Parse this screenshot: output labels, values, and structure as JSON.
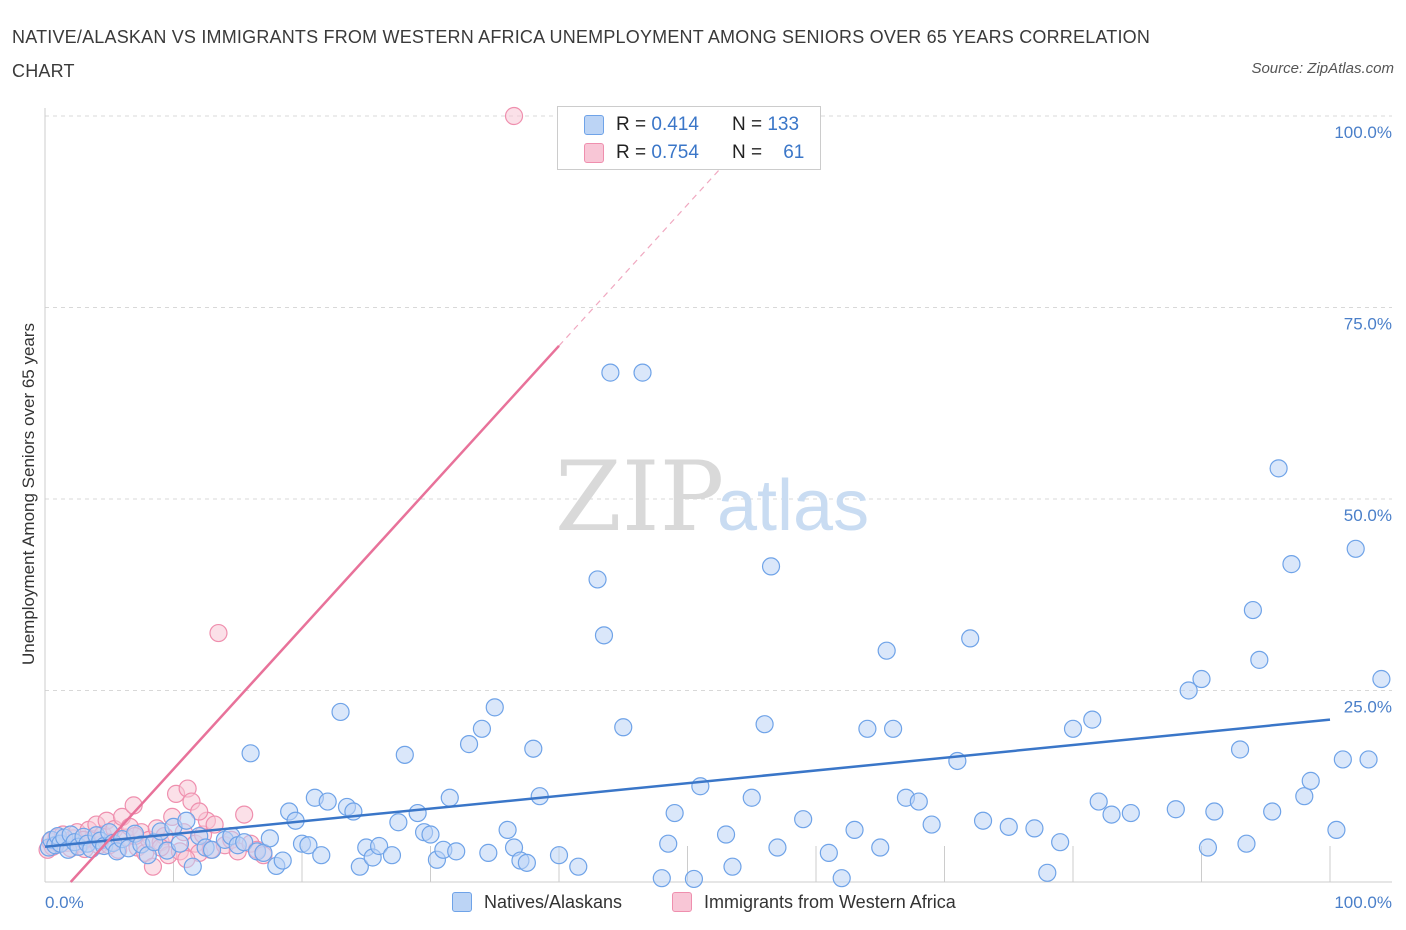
{
  "title": "NATIVE/ALASKAN VS IMMIGRANTS FROM WESTERN AFRICA UNEMPLOYMENT AMONG SENIORS OVER 65 YEARS CORRELATION CHART",
  "source": "Source: ZipAtlas.com",
  "watermark": {
    "zip": "ZIP",
    "atlas": "atlas"
  },
  "legend_stats": [
    {
      "r_label": "R =",
      "r_value": "0.414",
      "n_label": "N =",
      "n_value": "133",
      "color": "#6fa3e8"
    },
    {
      "r_label": "R =",
      "r_value": "0.754",
      "n_label": "N =",
      "n_value": "61",
      "color": "#ef8fae"
    }
  ],
  "chart_data": {
    "type": "scatter",
    "ylabel": "Unemployment Among Seniors over 65 years",
    "xlim": [
      0,
      100
    ],
    "ylim": [
      0,
      100
    ],
    "x_tick_labels": [
      "0.0%",
      "100.0%"
    ],
    "y_ticks": [
      25,
      50,
      75,
      100
    ],
    "y_tick_labels": [
      "25.0%",
      "50.0%",
      "75.0%",
      "100.0%"
    ],
    "grid": true,
    "legend": "bottom",
    "series": [
      {
        "name": "Natives/Alaskans",
        "color": "#6fa3e8",
        "fill": "#bcd4f5",
        "points": [
          [
            0.3,
            4.5
          ],
          [
            0.5,
            5.5
          ],
          [
            0.8,
            4.8
          ],
          [
            1.0,
            6.0
          ],
          [
            1.2,
            5.0
          ],
          [
            1.5,
            5.8
          ],
          [
            1.8,
            4.2
          ],
          [
            2.0,
            6.2
          ],
          [
            2.3,
            5.2
          ],
          [
            2.6,
            4.6
          ],
          [
            3.0,
            5.9
          ],
          [
            3.3,
            5.0
          ],
          [
            3.6,
            4.3
          ],
          [
            4.0,
            6.1
          ],
          [
            4.3,
            5.4
          ],
          [
            4.6,
            4.7
          ],
          [
            5.0,
            6.5
          ],
          [
            5.3,
            5.1
          ],
          [
            5.6,
            4.0
          ],
          [
            6.0,
            5.6
          ],
          [
            6.5,
            4.4
          ],
          [
            7.0,
            6.3
          ],
          [
            7.5,
            4.9
          ],
          [
            8.0,
            3.5
          ],
          [
            8.5,
            5.2
          ],
          [
            9.0,
            6.6
          ],
          [
            9.5,
            4.1
          ],
          [
            10.0,
            7.2
          ],
          [
            10.5,
            5.0
          ],
          [
            11.0,
            8.0
          ],
          [
            11.5,
            2.0
          ],
          [
            12.0,
            6.0
          ],
          [
            12.5,
            4.5
          ],
          [
            13.0,
            4.2
          ],
          [
            14.0,
            5.5
          ],
          [
            14.5,
            6.0
          ],
          [
            15.0,
            4.8
          ],
          [
            15.5,
            5.2
          ],
          [
            16.0,
            16.8
          ],
          [
            16.5,
            4.0
          ],
          [
            17.0,
            3.8
          ],
          [
            17.5,
            5.7
          ],
          [
            18.0,
            2.1
          ],
          [
            18.5,
            2.8
          ],
          [
            19.0,
            9.2
          ],
          [
            19.5,
            8.0
          ],
          [
            20.0,
            5.0
          ],
          [
            20.5,
            4.8
          ],
          [
            21.0,
            11.0
          ],
          [
            21.5,
            3.5
          ],
          [
            22.0,
            10.5
          ],
          [
            23.0,
            22.2
          ],
          [
            23.5,
            9.8
          ],
          [
            24.0,
            9.2
          ],
          [
            24.5,
            2.0
          ],
          [
            25.0,
            4.5
          ],
          [
            25.5,
            3.2
          ],
          [
            26.0,
            4.7
          ],
          [
            27.0,
            3.5
          ],
          [
            27.5,
            7.8
          ],
          [
            28.0,
            16.6
          ],
          [
            29.0,
            9.0
          ],
          [
            29.5,
            6.5
          ],
          [
            30.0,
            6.2
          ],
          [
            30.5,
            2.9
          ],
          [
            31.0,
            4.2
          ],
          [
            31.5,
            11.0
          ],
          [
            32.0,
            4.0
          ],
          [
            33.0,
            18.0
          ],
          [
            34.0,
            20.0
          ],
          [
            34.5,
            3.8
          ],
          [
            35.0,
            22.8
          ],
          [
            36.0,
            6.8
          ],
          [
            36.5,
            4.5
          ],
          [
            37.0,
            2.8
          ],
          [
            37.5,
            2.5
          ],
          [
            38.0,
            17.4
          ],
          [
            38.5,
            11.2
          ],
          [
            40.0,
            3.5
          ],
          [
            41.5,
            2.0
          ],
          [
            43.0,
            39.5
          ],
          [
            43.5,
            32.2
          ],
          [
            44.0,
            66.5
          ],
          [
            45.0,
            20.2
          ],
          [
            46.5,
            66.5
          ],
          [
            48.0,
            0.5
          ],
          [
            48.5,
            5.0
          ],
          [
            49.0,
            9.0
          ],
          [
            50.5,
            0.4
          ],
          [
            51.0,
            12.5
          ],
          [
            53.0,
            6.2
          ],
          [
            53.5,
            2.0
          ],
          [
            55.0,
            11.0
          ],
          [
            56.0,
            20.6
          ],
          [
            56.5,
            41.2
          ],
          [
            57.0,
            4.5
          ],
          [
            59.0,
            8.2
          ],
          [
            61.0,
            3.8
          ],
          [
            62.0,
            0.5
          ],
          [
            63.0,
            6.8
          ],
          [
            64.0,
            20.0
          ],
          [
            65.0,
            4.5
          ],
          [
            65.5,
            30.2
          ],
          [
            66.0,
            20.0
          ],
          [
            67.0,
            11.0
          ],
          [
            68.0,
            10.5
          ],
          [
            69.0,
            7.5
          ],
          [
            71.0,
            15.8
          ],
          [
            72.0,
            31.8
          ],
          [
            73.0,
            8.0
          ],
          [
            75.0,
            7.2
          ],
          [
            77.0,
            7.0
          ],
          [
            78.0,
            1.2
          ],
          [
            79.0,
            5.2
          ],
          [
            80.0,
            20.0
          ],
          [
            81.5,
            21.2
          ],
          [
            82.0,
            10.5
          ],
          [
            83.0,
            8.8
          ],
          [
            84.5,
            9.0
          ],
          [
            88.0,
            9.5
          ],
          [
            89.0,
            25.0
          ],
          [
            90.0,
            26.5
          ],
          [
            90.5,
            4.5
          ],
          [
            91.0,
            9.2
          ],
          [
            93.0,
            17.3
          ],
          [
            93.5,
            5.0
          ],
          [
            94.0,
            35.5
          ],
          [
            94.5,
            29.0
          ],
          [
            95.5,
            9.2
          ],
          [
            96.0,
            54.0
          ],
          [
            97.0,
            41.5
          ],
          [
            98.0,
            11.2
          ],
          [
            98.5,
            13.2
          ],
          [
            100.5,
            6.8
          ],
          [
            101.0,
            16.0
          ],
          [
            102.0,
            43.5
          ],
          [
            103.0,
            16.0
          ],
          [
            104.0,
            26.5
          ]
        ]
      },
      {
        "name": "Immigrants from Western Africa",
        "color": "#ef8fae",
        "fill": "#f8c6d6",
        "points": [
          [
            0.2,
            4.2
          ],
          [
            0.4,
            5.3
          ],
          [
            0.6,
            4.6
          ],
          [
            0.9,
            5.8
          ],
          [
            1.1,
            4.9
          ],
          [
            1.4,
            6.2
          ],
          [
            1.7,
            5.1
          ],
          [
            2.0,
            4.4
          ],
          [
            2.2,
            5.7
          ],
          [
            2.5,
            6.5
          ],
          [
            2.8,
            5.0
          ],
          [
            3.1,
            4.3
          ],
          [
            3.4,
            6.8
          ],
          [
            3.7,
            5.6
          ],
          [
            4.0,
            7.5
          ],
          [
            4.2,
            4.8
          ],
          [
            4.5,
            6.2
          ],
          [
            4.8,
            8.0
          ],
          [
            5.1,
            5.2
          ],
          [
            5.4,
            6.9
          ],
          [
            5.7,
            4.2
          ],
          [
            6.0,
            8.5
          ],
          [
            6.3,
            5.8
          ],
          [
            6.6,
            7.2
          ],
          [
            6.9,
            10.0
          ],
          [
            7.2,
            4.5
          ],
          [
            7.5,
            6.5
          ],
          [
            7.8,
            3.8
          ],
          [
            8.1,
            5.5
          ],
          [
            8.4,
            2.0
          ],
          [
            8.7,
            7.0
          ],
          [
            9.0,
            5.2
          ],
          [
            9.3,
            6.0
          ],
          [
            9.6,
            3.5
          ],
          [
            9.9,
            8.5
          ],
          [
            10.2,
            11.5
          ],
          [
            10.5,
            4.0
          ],
          [
            10.8,
            6.5
          ],
          [
            11.1,
            12.2
          ],
          [
            11.4,
            10.5
          ],
          [
            11.7,
            5.0
          ],
          [
            12.0,
            3.8
          ],
          [
            12.3,
            6.2
          ],
          [
            12.6,
            8.0
          ],
          [
            12.9,
            4.2
          ],
          [
            13.2,
            7.5
          ],
          [
            13.5,
            32.5
          ],
          [
            14.0,
            4.8
          ],
          [
            14.5,
            5.5
          ],
          [
            15.0,
            4.0
          ],
          [
            15.5,
            8.8
          ],
          [
            16.0,
            5.0
          ],
          [
            16.5,
            4.2
          ],
          [
            17.0,
            3.5
          ],
          [
            36.5,
            100
          ],
          [
            3.0,
            5.5
          ],
          [
            5.0,
            4.8
          ],
          [
            7.0,
            6.0
          ],
          [
            9.0,
            4.5
          ],
          [
            11.0,
            3.0
          ],
          [
            12.0,
            9.2
          ]
        ]
      }
    ],
    "trendlines": [
      {
        "series": "Natives/Alaskans",
        "x": [
          0,
          100
        ],
        "y": [
          4.6,
          21.2
        ]
      },
      {
        "series": "Immigrants from Western Africa",
        "x": [
          2.0,
          40.0
        ],
        "y": [
          0,
          70
        ],
        "dashed_x": [
          40.0,
          54.0
        ],
        "dashed_y": [
          70,
          95.8
        ]
      }
    ]
  }
}
